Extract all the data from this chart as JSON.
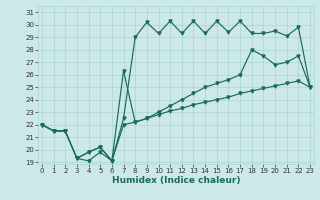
{
  "xlabel": "Humidex (Indice chaleur)",
  "bg_color": "#cce8e8",
  "grid_color": "#aad4d4",
  "line_color": "#1a6b5a",
  "xlim": [
    -0.3,
    23.3
  ],
  "ylim": [
    18.85,
    31.5
  ],
  "yticks": [
    19,
    20,
    21,
    22,
    23,
    24,
    25,
    26,
    27,
    28,
    29,
    30,
    31
  ],
  "xticks": [
    0,
    1,
    2,
    3,
    4,
    5,
    6,
    7,
    8,
    9,
    10,
    11,
    12,
    13,
    14,
    15,
    16,
    17,
    18,
    19,
    20,
    21,
    22,
    23
  ],
  "s1_x": [
    0,
    1,
    2,
    3,
    4,
    5,
    6,
    7,
    8,
    9,
    10,
    11,
    12,
    13,
    14,
    15,
    16,
    17,
    18,
    19,
    20,
    21,
    22,
    23
  ],
  "s1_y": [
    22.0,
    21.5,
    21.5,
    19.3,
    19.1,
    19.8,
    19.1,
    22.5,
    29.0,
    30.2,
    29.3,
    30.3,
    29.3,
    30.3,
    29.3,
    30.3,
    29.4,
    30.3,
    29.3,
    29.3,
    29.5,
    29.1,
    29.8,
    25.0
  ],
  "s2_x": [
    0,
    1,
    2,
    3,
    4,
    5,
    6,
    7,
    8,
    9,
    10,
    11,
    12,
    13,
    14,
    15,
    16,
    17,
    18,
    19,
    20,
    21,
    22,
    23
  ],
  "s2_y": [
    22.0,
    21.5,
    21.5,
    19.3,
    19.8,
    20.2,
    19.1,
    26.3,
    22.2,
    22.5,
    23.0,
    23.5,
    24.0,
    24.5,
    25.0,
    25.3,
    25.6,
    26.0,
    28.0,
    27.5,
    26.8,
    27.0,
    27.5,
    25.0
  ],
  "s3_x": [
    0,
    1,
    2,
    3,
    4,
    5,
    6,
    7,
    8,
    9,
    10,
    11,
    12,
    13,
    14,
    15,
    16,
    17,
    18,
    19,
    20,
    21,
    22,
    23
  ],
  "s3_y": [
    22.0,
    21.5,
    21.5,
    19.3,
    19.8,
    20.2,
    19.1,
    22.0,
    22.2,
    22.5,
    22.8,
    23.1,
    23.3,
    23.6,
    23.8,
    24.0,
    24.2,
    24.5,
    24.7,
    24.9,
    25.1,
    25.3,
    25.5,
    25.0
  ]
}
